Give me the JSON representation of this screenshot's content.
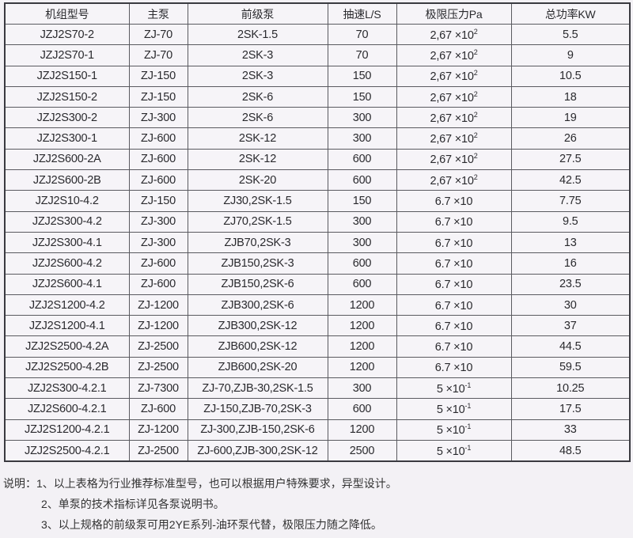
{
  "table": {
    "headers": [
      "机组型号",
      "主泵",
      "前级泵",
      "抽速L/S",
      "极限压力Pa",
      "总功率KW"
    ],
    "rows": [
      {
        "model": "JZJ2S70-2",
        "main": "ZJ-70",
        "backing": "2SK-1.5",
        "speed": "70",
        "pressure_base": "2,67 ×10",
        "pressure_exp": "2",
        "power": "5.5"
      },
      {
        "model": "JZJ2S70-1",
        "main": "ZJ-70",
        "backing": "2SK-3",
        "speed": "70",
        "pressure_base": "2,67 ×10",
        "pressure_exp": "2",
        "power": "9"
      },
      {
        "model": "JZJ2S150-1",
        "main": "ZJ-150",
        "backing": "2SK-3",
        "speed": "150",
        "pressure_base": "2,67 ×10",
        "pressure_exp": "2",
        "power": "10.5"
      },
      {
        "model": "JZJ2S150-2",
        "main": "ZJ-150",
        "backing": "2SK-6",
        "speed": "150",
        "pressure_base": "2,67 ×10",
        "pressure_exp": "2",
        "power": "18"
      },
      {
        "model": "JZJ2S300-2",
        "main": "ZJ-300",
        "backing": "2SK-6",
        "speed": "300",
        "pressure_base": "2,67 ×10",
        "pressure_exp": "2",
        "power": "19"
      },
      {
        "model": "JZJ2S300-1",
        "main": "ZJ-600",
        "backing": "2SK-12",
        "speed": "300",
        "pressure_base": "2,67 ×10",
        "pressure_exp": "2",
        "power": "26"
      },
      {
        "model": "JZJ2S600-2A",
        "main": "ZJ-600",
        "backing": "2SK-12",
        "speed": "600",
        "pressure_base": "2,67 ×10",
        "pressure_exp": "2",
        "power": "27.5"
      },
      {
        "model": "JZJ2S600-2B",
        "main": "ZJ-600",
        "backing": "2SK-20",
        "speed": "600",
        "pressure_base": "2,67 ×10",
        "pressure_exp": "2",
        "power": "42.5"
      },
      {
        "model": "JZJ2S10-4.2",
        "main": "ZJ-150",
        "backing": "ZJ30,2SK-1.5",
        "speed": "150",
        "pressure_base": "6.7 ×10",
        "pressure_exp": "",
        "power": "7.75"
      },
      {
        "model": "JZJ2S300-4.2",
        "main": "ZJ-300",
        "backing": "ZJ70,2SK-1.5",
        "speed": "300",
        "pressure_base": "6.7 ×10",
        "pressure_exp": "",
        "power": "9.5"
      },
      {
        "model": "JZJ2S300-4.1",
        "main": "ZJ-300",
        "backing": "ZJB70,2SK-3",
        "speed": "300",
        "pressure_base": "6.7 ×10",
        "pressure_exp": "",
        "power": "13"
      },
      {
        "model": "JZJ2S600-4.2",
        "main": "ZJ-600",
        "backing": "ZJB150,2SK-3",
        "speed": "600",
        "pressure_base": "6.7 ×10",
        "pressure_exp": "",
        "power": "16"
      },
      {
        "model": "JZJ2S600-4.1",
        "main": "ZJ-600",
        "backing": "ZJB150,2SK-6",
        "speed": "600",
        "pressure_base": "6.7 ×10",
        "pressure_exp": "",
        "power": "23.5"
      },
      {
        "model": "JZJ2S1200-4.2",
        "main": "ZJ-1200",
        "backing": "ZJB300,2SK-6",
        "speed": "1200",
        "pressure_base": "6.7 ×10",
        "pressure_exp": "",
        "power": "30"
      },
      {
        "model": "JZJ2S1200-4.1",
        "main": "ZJ-1200",
        "backing": "ZJB300,2SK-12",
        "speed": "1200",
        "pressure_base": "6.7 ×10",
        "pressure_exp": "",
        "power": "37"
      },
      {
        "model": "JZJ2S2500-4.2A",
        "main": "ZJ-2500",
        "backing": "ZJB600,2SK-12",
        "speed": "1200",
        "pressure_base": "6.7 ×10",
        "pressure_exp": "",
        "power": "44.5"
      },
      {
        "model": "JZJ2S2500-4.2B",
        "main": "ZJ-2500",
        "backing": "ZJB600,2SK-20",
        "speed": "1200",
        "pressure_base": "6.7 ×10",
        "pressure_exp": "",
        "power": "59.5"
      },
      {
        "model": "JZJ2S300-4.2.1",
        "main": "ZJ-7300",
        "backing": "ZJ-70,ZJB-30,2SK-1.5",
        "speed": "300",
        "pressure_base": "5 ×10",
        "pressure_exp": "-1",
        "power": "10.25"
      },
      {
        "model": "JZJ2S600-4.2.1",
        "main": "ZJ-600",
        "backing": "ZJ-150,ZJB-70,2SK-3",
        "speed": "600",
        "pressure_base": "5 ×10",
        "pressure_exp": "-1",
        "power": "17.5"
      },
      {
        "model": "JZJ2S1200-4.2.1",
        "main": "ZJ-1200",
        "backing": "ZJ-300,ZJB-150,2SK-6",
        "speed": "1200",
        "pressure_base": "5 ×10",
        "pressure_exp": "-1",
        "power": "33"
      },
      {
        "model": "JZJ2S2500-4.2.1",
        "main": "ZJ-2500",
        "backing": "ZJ-600,ZJB-300,2SK-12",
        "speed": "2500",
        "pressure_base": "5 ×10",
        "pressure_exp": "-1",
        "power": "48.5"
      }
    ]
  },
  "notes": [
    "说明：1、以上表格为行业推荐标准型号，也可以根据用户特殊要求，异型设计。",
    "2、单泵的技术指标详见各泵说明书。",
    "3、以上规格的前级泵可用2YE系列-油环泵代替，极限压力随之降低。"
  ]
}
